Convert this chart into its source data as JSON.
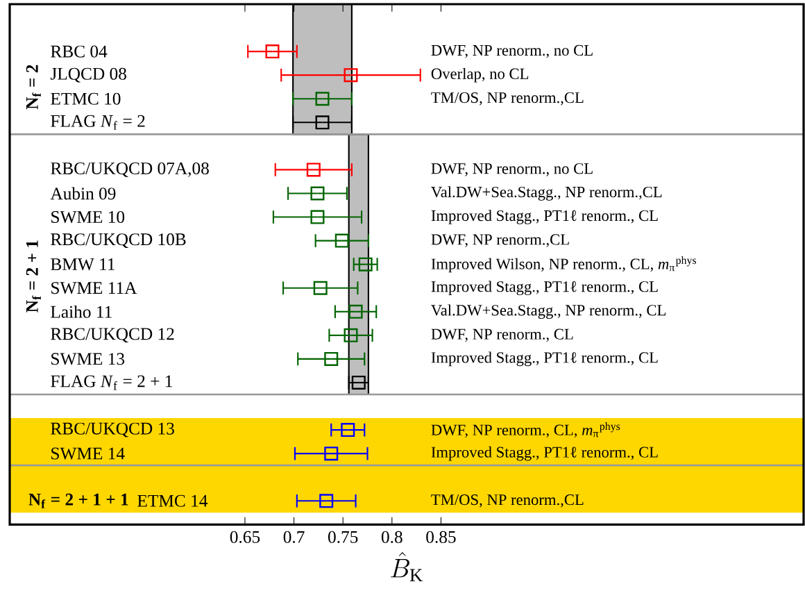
{
  "chart_data": {
    "type": "scatter",
    "orientation": "horizontal",
    "marker": "square",
    "categories": [
      null,
      "RBC 04",
      "JLQCD 08",
      "ETMC 10",
      "FLAG *N*$_{f}$ = 2",
      null,
      "RBC/UKQCD 07A,08",
      "Aubin 09",
      "SWME 10",
      "RBC/UKQCD 10B",
      "BMW 11",
      "SWME 11A",
      "Laiho 11",
      "RBC/UKQCD 12",
      "SWME 13",
      "FLAG *N*$_{f}$ = 2 + 1",
      null,
      "RBC/UKQCD 13",
      "SWME 14",
      null,
      "ETMC 14"
    ],
    "y2_categories": [
      null,
      "DWF, NP renorm., no CL",
      "Overlap, no CL",
      "TM/OS, NP renorm.,CL",
      null,
      null,
      "DWF, NP renorm., no CL",
      "Val.DW+Sea.Stagg., NP renorm.,CL",
      "Improved Stagg., PT1ℓ renorm., CL",
      "DWF, NP renorm.,CL",
      "Improved Wilson, NP renorm., CL, *m*$_{π}$$^{phys}$",
      "Improved Stagg., PT1ℓ renorm., CL",
      "Val.DW+Sea.Stagg., NP renorm., CL",
      "DWF, NP renorm., CL",
      "Improved Stagg., PT1ℓ renorm., CL",
      null,
      null,
      "DWF, NP renorm., CL, *m*$_{π}$$^{phys}$",
      "Improved Stagg., PT1ℓ renorm., CL",
      null,
      "TM/OS, NP renorm.,CL"
    ],
    "series": [
      {
        "color": "#ff0000",
        "values": [
          null,
          0.678,
          0.758,
          null,
          null,
          null,
          0.72,
          null,
          null,
          null,
          null,
          null,
          null,
          null,
          null,
          null,
          null,
          null,
          null,
          null,
          null
        ],
        "errors": [
          null,
          0.025,
          0.071,
          null,
          null,
          null,
          0.039,
          null,
          null,
          null,
          null,
          null,
          null,
          null,
          null,
          null,
          null,
          null,
          null,
          null,
          null
        ]
      },
      {
        "color": "#006400",
        "values": [
          null,
          null,
          null,
          0.729,
          null,
          null,
          null,
          null,
          null,
          null,
          0.773,
          null,
          0.763,
          0.758,
          0.738,
          null,
          null,
          null,
          null,
          null,
          null
        ],
        "errors": [
          null,
          null,
          null,
          0.03,
          null,
          null,
          null,
          null,
          null,
          null,
          0.012,
          null,
          0.021,
          0.022,
          0.034,
          null,
          null,
          null,
          null,
          null,
          null
        ]
      },
      {
        "color": "#006400",
        "values": [
          null,
          null,
          null,
          null,
          null,
          null,
          null,
          0.724,
          0.724,
          0.749,
          null,
          0.727,
          null,
          null,
          null,
          null,
          null,
          null,
          null,
          null,
          null
        ],
        "errors": [
          null,
          null,
          null,
          null,
          null,
          null,
          null,
          0.03,
          0.045,
          0.027,
          null,
          0.038,
          null,
          null,
          null,
          null,
          null,
          null,
          null,
          null,
          null
        ]
      },
      {
        "color": "#000000",
        "values": [
          null,
          null,
          null,
          null,
          0.729,
          null,
          null,
          null,
          null,
          null,
          null,
          null,
          null,
          null,
          null,
          0.766,
          null,
          null,
          null,
          null,
          null
        ],
        "errors": [
          null,
          null,
          null,
          null,
          0.03,
          null,
          null,
          null,
          null,
          null,
          null,
          null,
          null,
          null,
          null,
          0.01,
          null,
          null,
          null,
          null,
          null
        ]
      },
      {
        "color": "#0000ff",
        "values": [
          null,
          null,
          null,
          null,
          null,
          null,
          null,
          null,
          null,
          null,
          null,
          null,
          null,
          null,
          null,
          null,
          null,
          0.755,
          0.738,
          null,
          0.733
        ],
        "errors": [
          null,
          null,
          null,
          null,
          null,
          null,
          null,
          null,
          null,
          null,
          null,
          null,
          null,
          null,
          null,
          null,
          null,
          0.017,
          0.037,
          null,
          0.03
        ]
      }
    ],
    "bands": [
      {
        "axis": "y",
        "from": "RBC/UKQCD 13",
        "to": "ETMC 14",
        "color": "#ffd700"
      },
      {
        "axis": "x",
        "from": 0.699,
        "to": 0.759,
        "color": "#bebebe"
      },
      {
        "axis": "x",
        "from": 0.756,
        "to": 0.776,
        "color": "#bebebe"
      }
    ],
    "annotations": [
      "**N$_{f}$ = 2**",
      "**N$_{f}$ = 2 + 1**",
      "**N$_{f}$ = 2 + 1 + 1**"
    ],
    "xlabel": "\\hat{B}_{\\rm K}",
    "xlim": [
      0.41,
      1.22
    ],
    "xticks": [
      0.65,
      0.7,
      0.75,
      0.8,
      0.85
    ]
  }
}
